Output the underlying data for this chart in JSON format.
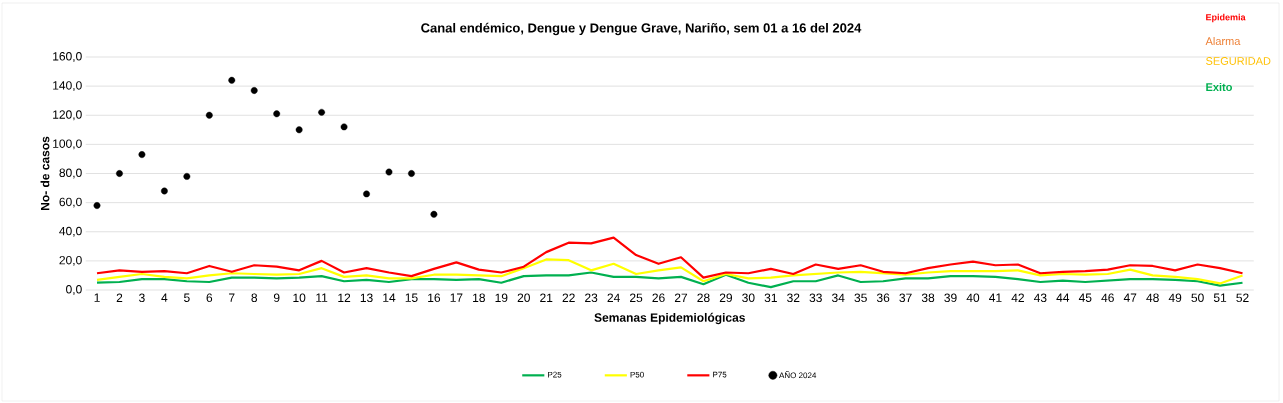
{
  "chart_data": {
    "type": "line",
    "title": "Canal endémico, Dengue y Dengue Grave, Nariño, sem 01 a 16 del 2024",
    "xlabel": "Semanas Epidemiológicas",
    "ylabel": "No- de casos",
    "categories": [
      "1",
      "2",
      "3",
      "4",
      "5",
      "6",
      "7",
      "8",
      "9",
      "10",
      "11",
      "12",
      "13",
      "14",
      "15",
      "16",
      "17",
      "18",
      "19",
      "20",
      "21",
      "22",
      "23",
      "24",
      "25",
      "26",
      "27",
      "28",
      "29",
      "30",
      "31",
      "32",
      "33",
      "34",
      "35",
      "36",
      "37",
      "38",
      "39",
      "40",
      "41",
      "42",
      "43",
      "44",
      "45",
      "46",
      "47",
      "48",
      "49",
      "50",
      "51",
      "52"
    ],
    "series": [
      {
        "name": "P25",
        "color": "#00b050",
        "values": [
          5,
          5.5,
          7.5,
          7.5,
          6,
          5.5,
          8.5,
          8.5,
          8,
          8.5,
          9.5,
          6,
          7,
          5.5,
          7.5,
          7.5,
          7,
          7.5,
          5,
          9.5,
          10,
          10,
          12,
          9,
          9,
          8,
          9,
          4,
          10.5,
          5,
          2,
          6,
          6,
          10,
          5.5,
          6,
          8,
          8,
          9.5,
          9.5,
          9,
          7.5,
          5.5,
          6.5,
          5.5,
          6.5,
          7.5,
          7.5,
          7,
          6,
          3,
          5
        ]
      },
      {
        "name": "P50",
        "color": "#ffff00",
        "values": [
          7,
          9,
          11,
          9,
          8,
          10,
          11.5,
          11,
          10.5,
          11,
          15,
          9,
          10,
          8,
          8,
          10.5,
          10.5,
          10,
          9.5,
          15,
          21,
          20.5,
          13.5,
          18,
          11,
          13.5,
          15.5,
          6,
          11,
          8,
          8.5,
          10,
          11,
          12,
          12.5,
          11.5,
          10.5,
          12,
          13,
          13,
          13,
          13.5,
          10,
          11,
          10.5,
          11,
          14,
          10,
          9,
          7.5,
          4.5,
          10
        ]
      },
      {
        "name": "P75",
        "color": "#ff0000",
        "values": [
          11.5,
          13.5,
          12.5,
          13,
          11.5,
          16.5,
          12.5,
          17,
          16,
          13.5,
          20,
          12,
          15,
          12,
          9.5,
          14.5,
          19,
          14,
          12,
          16,
          26,
          32.5,
          32,
          36,
          24,
          18,
          22.5,
          8.5,
          12,
          11.5,
          14.5,
          11,
          17.5,
          14.5,
          17,
          12.5,
          11.5,
          15,
          17.5,
          19.5,
          17,
          17.5,
          11.5,
          12.5,
          13,
          14,
          17,
          16.5,
          13.5,
          17.5,
          15,
          11.5
        ]
      },
      {
        "name": "AÑO 2024",
        "type": "scatter",
        "color": "#000000",
        "values": [
          58,
          80,
          93,
          68,
          78,
          120,
          144,
          137,
          121,
          110,
          122,
          112,
          66,
          81,
          80,
          52,
          null,
          null,
          null,
          null,
          null,
          null,
          null,
          null,
          null,
          null,
          null,
          null,
          null,
          null,
          null,
          null,
          null,
          null,
          null,
          null,
          null,
          null,
          null,
          null,
          null,
          null,
          null,
          null,
          null,
          null,
          null,
          null,
          null,
          null,
          null,
          null
        ]
      }
    ],
    "ylim": [
      0,
      160
    ],
    "yticks": [
      {
        "value": 0,
        "label": "0,0"
      },
      {
        "value": 20,
        "label": "20,0"
      },
      {
        "value": 40,
        "label": "40,0"
      },
      {
        "value": 60,
        "label": "60,0"
      },
      {
        "value": 80,
        "label": "80,0"
      },
      {
        "value": 100,
        "label": "100,0"
      },
      {
        "value": 120,
        "label": "120,0"
      },
      {
        "value": 140,
        "label": "140,0"
      },
      {
        "value": 160,
        "label": "160,0"
      }
    ],
    "grid": "y",
    "legend": "bottom",
    "annotations": [
      "Epidemia",
      "Alarma",
      "SEGURIDAD",
      "Exito"
    ]
  }
}
